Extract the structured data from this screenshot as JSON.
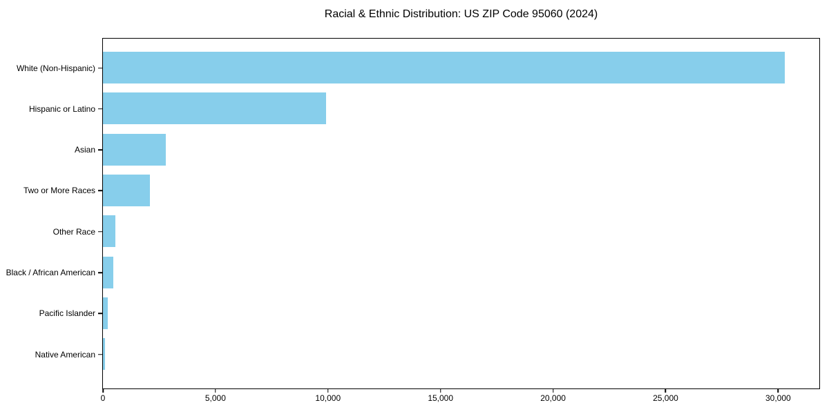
{
  "chart_data": {
    "type": "bar",
    "orientation": "horizontal",
    "title": "Racial & Ethnic Distribution: US ZIP Code 95060 (2024)",
    "categories": [
      "White (Non-Hispanic)",
      "Hispanic or Latino",
      "Asian",
      "Two or More Races",
      "Other Race",
      "Black / African American",
      "Pacific Islander",
      "Native American"
    ],
    "values": [
      30280,
      9920,
      2790,
      2080,
      550,
      450,
      200,
      90
    ],
    "xlabel": "",
    "ylabel": "",
    "xlim": [
      0,
      31800
    ],
    "x_ticks": [
      {
        "value": 0,
        "label": "0"
      },
      {
        "value": 5000,
        "label": "5,000"
      },
      {
        "value": 10000,
        "label": "10,000"
      },
      {
        "value": 15000,
        "label": "15,000"
      },
      {
        "value": 20000,
        "label": "20,000"
      },
      {
        "value": 25000,
        "label": "25,000"
      },
      {
        "value": 30000,
        "label": "30,000"
      }
    ],
    "grid": false,
    "legend": "none",
    "bar_color": "#87CEEB",
    "background_color": "#FFFFFF",
    "spine_color": "#000000",
    "text_color": "#000000"
  }
}
